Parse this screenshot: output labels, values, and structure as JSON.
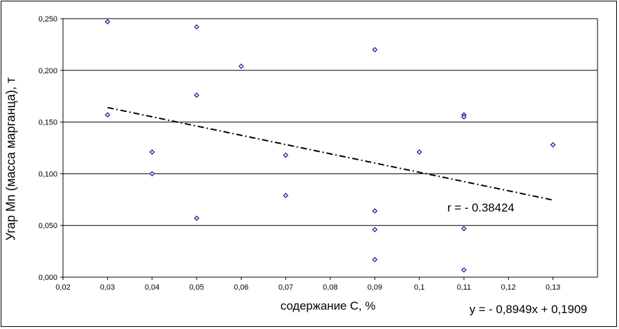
{
  "chart_data": {
    "type": "scatter",
    "title": "",
    "xlabel": "содержание С, %",
    "ylabel": "Угар Mn (масса марганца), т",
    "xlim": [
      0.02,
      0.14
    ],
    "ylim": [
      0.0,
      0.25
    ],
    "x_ticks": [
      "0,02",
      "0,03",
      "0,04",
      "0,05",
      "0,06",
      "0,07",
      "0,08",
      "0,09",
      "0,1",
      "0,11",
      "0,12",
      "0,13"
    ],
    "y_ticks": [
      "0,000",
      "0,050",
      "0,100",
      "0,150",
      "0,200",
      "0,250"
    ],
    "grid": "horizontal",
    "marker": "diamond",
    "marker_color": "#1f1f9a",
    "points": [
      {
        "x": 0.03,
        "y": 0.247
      },
      {
        "x": 0.03,
        "y": 0.157
      },
      {
        "x": 0.04,
        "y": 0.121
      },
      {
        "x": 0.04,
        "y": 0.1
      },
      {
        "x": 0.05,
        "y": 0.242
      },
      {
        "x": 0.05,
        "y": 0.176
      },
      {
        "x": 0.05,
        "y": 0.057
      },
      {
        "x": 0.06,
        "y": 0.204
      },
      {
        "x": 0.07,
        "y": 0.118
      },
      {
        "x": 0.07,
        "y": 0.079
      },
      {
        "x": 0.09,
        "y": 0.22
      },
      {
        "x": 0.09,
        "y": 0.064
      },
      {
        "x": 0.09,
        "y": 0.046
      },
      {
        "x": 0.09,
        "y": 0.017
      },
      {
        "x": 0.1,
        "y": 0.121
      },
      {
        "x": 0.11,
        "y": 0.157
      },
      {
        "x": 0.11,
        "y": 0.155
      },
      {
        "x": 0.11,
        "y": 0.047
      },
      {
        "x": 0.11,
        "y": 0.007
      },
      {
        "x": 0.13,
        "y": 0.128
      }
    ],
    "trendline": {
      "slope": -0.8949,
      "intercept": 0.1909,
      "x_range": [
        0.03,
        0.13
      ],
      "style": "dash-dot"
    },
    "annotations": {
      "equation": "y = - 0,8949x + 0,1909",
      "r_value": "r = - 0.38424"
    }
  }
}
